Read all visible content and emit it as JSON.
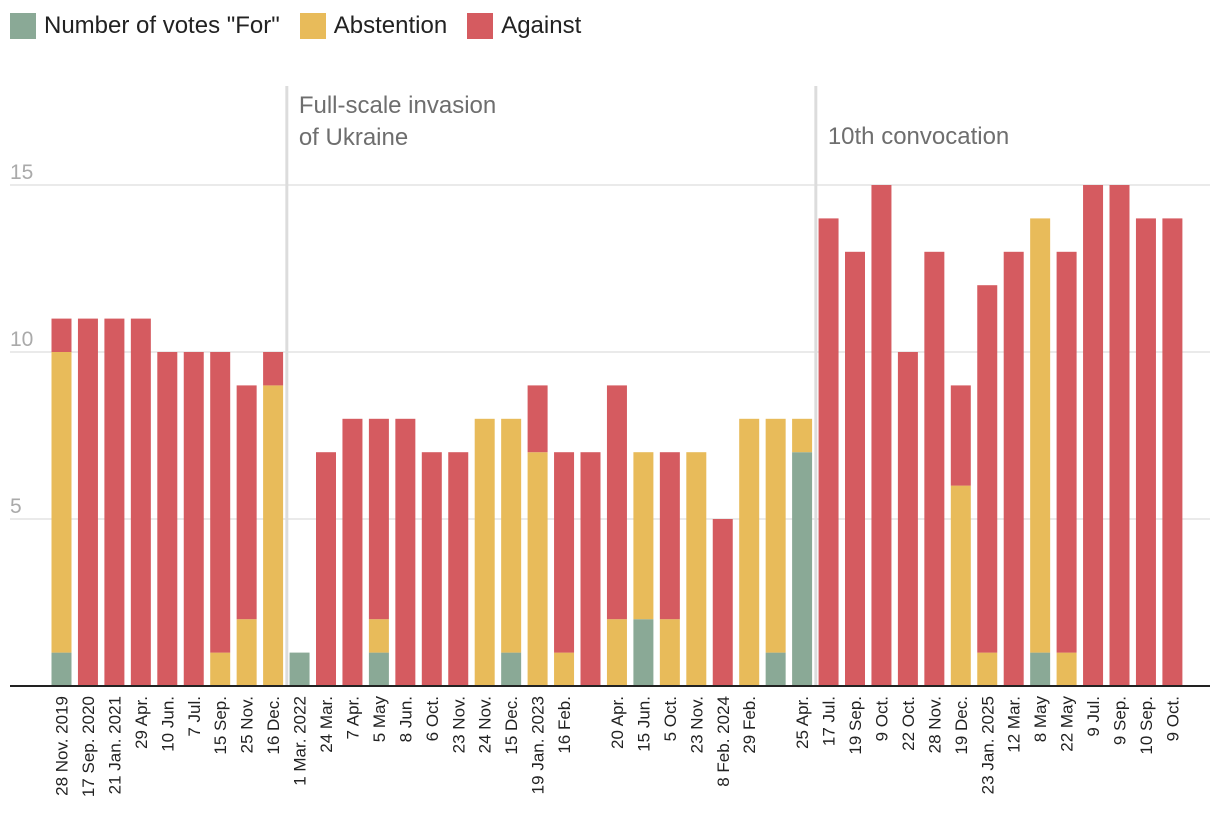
{
  "chart_data": {
    "type": "bar",
    "stacked": true,
    "title": "",
    "xlabel": "",
    "ylabel": "",
    "ylim": [
      0,
      17
    ],
    "yticks": [
      5,
      10,
      15
    ],
    "legend_position": "top-left",
    "colors": {
      "for": "#8aa996",
      "abstention": "#e8bb5a",
      "against": "#d55b60"
    },
    "categories": [
      "28 Nov. 2019",
      "17 Sep. 2020",
      "21 Jan. 2021",
      "29 Apr.",
      "10 Jun.",
      "7 Jul.",
      "15 Sep.",
      "25 Nov.",
      "16 Dec.",
      "1 Mar. 2022",
      "24 Mar.",
      "7 Apr.",
      "5 May",
      "8 Jun.",
      "6 Oct.",
      "23 Nov.",
      "24 Nov.",
      "15 Dec.",
      "19 Jan. 2023",
      "16 Feb.",
      "",
      "20 Apr.",
      "15 Jun.",
      "5 Oct.",
      "23 Nov.",
      "8 Feb. 2024",
      "29 Feb.",
      "",
      "25 Apr.",
      "17 Jul.",
      "19 Sep.",
      "9 Oct.",
      "22 Oct.",
      "28 Nov.",
      "19 Dec.",
      "23 Jan. 2025",
      "12 Mar.",
      "8 May",
      "22 May",
      "9 Jul.",
      "9 Sep.",
      "10 Sep.",
      "9 Oct."
    ],
    "series": [
      {
        "name": "Number of votes \"For\"",
        "key": "for",
        "values": [
          1,
          0,
          0,
          0,
          0,
          0,
          0,
          0,
          0,
          1,
          0,
          0,
          1,
          0,
          0,
          0,
          0,
          1,
          0,
          0,
          0,
          0,
          2,
          0,
          0,
          0,
          0,
          1,
          7,
          0,
          0,
          0,
          0,
          0,
          0,
          0,
          0,
          1,
          0,
          0,
          0,
          0,
          0
        ]
      },
      {
        "name": "Abstention",
        "key": "abstention",
        "values": [
          9,
          0,
          0,
          0,
          0,
          0,
          1,
          2,
          9,
          0,
          0,
          0,
          1,
          0,
          0,
          0,
          8,
          7,
          7,
          1,
          0,
          2,
          5,
          2,
          7,
          0,
          8,
          7,
          1,
          0,
          0,
          0,
          0,
          0,
          6,
          1,
          0,
          13,
          1,
          0,
          0,
          0,
          0
        ]
      },
      {
        "name": "Against",
        "key": "against",
        "values": [
          1,
          11,
          11,
          11,
          10,
          10,
          9,
          7,
          1,
          0,
          7,
          8,
          6,
          8,
          7,
          7,
          0,
          0,
          2,
          6,
          7,
          7,
          0,
          5,
          0,
          5,
          0,
          0,
          0,
          14,
          13,
          15,
          10,
          13,
          3,
          11,
          13,
          0,
          12,
          15,
          15,
          14,
          14
        ]
      }
    ],
    "annotations": [
      {
        "lines": [
          "Full-scale invasion",
          "of Ukraine"
        ],
        "before_category": "1 Mar. 2022"
      },
      {
        "lines": [
          "10th convocation"
        ],
        "before_category": "17 Jul."
      }
    ]
  }
}
